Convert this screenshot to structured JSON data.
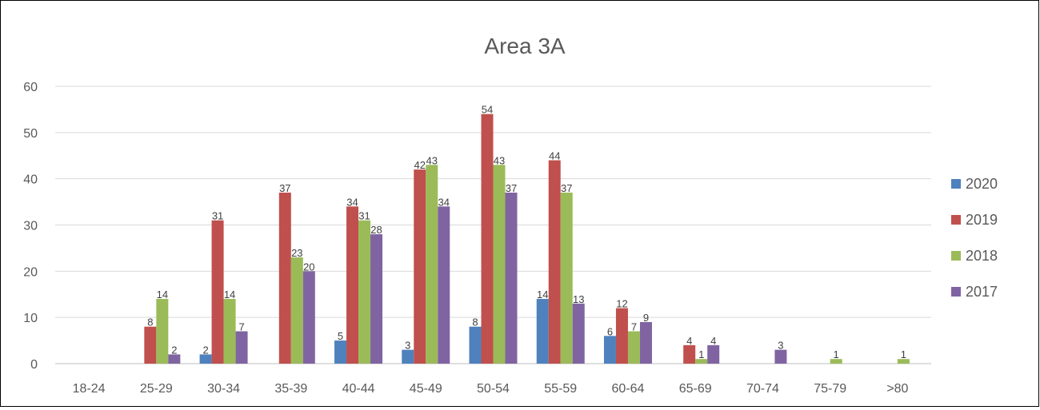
{
  "chart_data": {
    "type": "bar",
    "title": "Area 3A",
    "xlabel": "",
    "ylabel": "",
    "ylim": [
      0,
      60
    ],
    "yticks": [
      0,
      10,
      20,
      30,
      40,
      50,
      60
    ],
    "grid": true,
    "legend_position": "right",
    "data_labels": true,
    "categories": [
      "18-24",
      "25-29",
      "30-34",
      "35-39",
      "40-44",
      "45-49",
      "50-54",
      "55-59",
      "60-64",
      "65-69",
      "70-74",
      "75-79",
      ">80"
    ],
    "series": [
      {
        "name": "2020",
        "color": "#4F81BD",
        "values": [
          0,
          0,
          2,
          0,
          5,
          3,
          8,
          14,
          6,
          0,
          0,
          0,
          0
        ]
      },
      {
        "name": "2019",
        "color": "#C0504D",
        "values": [
          0,
          8,
          31,
          37,
          34,
          42,
          54,
          44,
          12,
          4,
          0,
          0,
          0
        ]
      },
      {
        "name": "2018",
        "color": "#9BBB59",
        "values": [
          0,
          14,
          14,
          23,
          31,
          43,
          43,
          37,
          7,
          1,
          0,
          1,
          1
        ]
      },
      {
        "name": "2017",
        "color": "#8064A2",
        "values": [
          0,
          2,
          7,
          20,
          28,
          34,
          37,
          13,
          9,
          4,
          3,
          0,
          0
        ]
      }
    ]
  }
}
